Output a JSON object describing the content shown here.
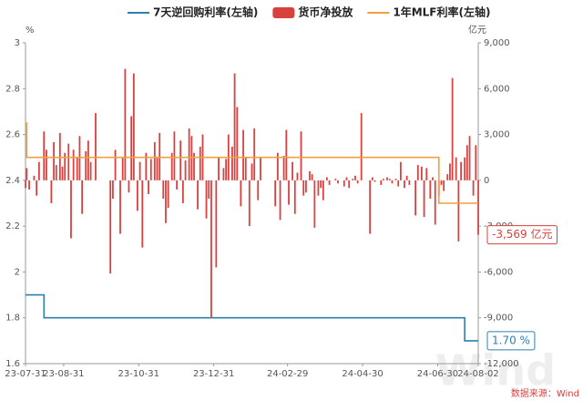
{
  "chart_data": {
    "type": "bar-line",
    "y_unit": "%",
    "y2_unit": "亿元",
    "source": "数据来源：Wind",
    "watermark": "Wind",
    "ylim": [
      1.6,
      3
    ],
    "yticks": [
      1.6,
      1.8,
      2,
      2.2,
      2.4,
      2.6,
      2.8,
      3
    ],
    "y2lim": [
      -12000,
      9000
    ],
    "y2ticks": [
      {
        "value": -12000,
        "label": "-12,000"
      },
      {
        "value": -9000,
        "label": "-9,000"
      },
      {
        "value": -6000,
        "label": "-6,000"
      },
      {
        "value": -3000,
        "label": "-3,000"
      },
      0,
      {
        "value": 3000,
        "label": "3,000"
      },
      {
        "value": 6000,
        "label": "6,000"
      },
      {
        "value": 9000,
        "label": "9,000"
      }
    ],
    "xlim": [
      "23-07-31",
      "24-08-02"
    ],
    "xticks": [
      "23-07-31",
      "23-08-31",
      "23-10-31",
      "23-12-31",
      "24-02-29",
      "24-04-30",
      "24-06-30",
      "24-08-02"
    ],
    "series": [
      {
        "name": "7天逆回购利率(左轴)",
        "type": "line",
        "color": "#2e7fb0",
        "x": [
          "23-07-31",
          "23-08-15",
          "23-08-15",
          "24-07-22",
          "24-07-22",
          "24-08-02"
        ],
        "values": [
          1.9,
          1.9,
          1.8,
          1.8,
          1.7,
          1.7
        ],
        "end_label": "1.70 %"
      },
      {
        "name": "货币净投放",
        "type": "bar",
        "axis": "y2",
        "color": "#d9413f",
        "x": [
          "23-07-31",
          "23-08-01",
          "23-08-03",
          "23-08-07",
          "23-08-09",
          "23-08-11",
          "23-08-15",
          "23-08-17",
          "23-08-21",
          "23-08-23",
          "23-08-25",
          "23-08-28",
          "23-08-30",
          "23-09-01",
          "23-09-04",
          "23-09-06",
          "23-09-08",
          "23-09-11",
          "23-09-13",
          "23-09-15",
          "23-09-18",
          "23-09-20",
          "23-09-22",
          "23-09-26",
          "23-10-08",
          "23-10-10",
          "23-10-12",
          "23-10-16",
          "23-10-18",
          "23-10-20",
          "23-10-23",
          "23-10-25",
          "23-10-27",
          "23-10-30",
          "23-11-01",
          "23-11-03",
          "23-11-06",
          "23-11-08",
          "23-11-10",
          "23-11-13",
          "23-11-15",
          "23-11-17",
          "23-11-20",
          "23-11-22",
          "23-11-24",
          "23-11-27",
          "23-11-29",
          "23-12-01",
          "23-12-04",
          "23-12-06",
          "23-12-08",
          "23-12-11",
          "23-12-13",
          "23-12-15",
          "23-12-18",
          "23-12-20",
          "23-12-22",
          "23-12-25",
          "23-12-27",
          "23-12-29",
          "24-01-02",
          "24-01-04",
          "24-01-08",
          "24-01-10",
          "24-01-12",
          "24-01-15",
          "24-01-17",
          "24-01-19",
          "24-01-22",
          "24-01-24",
          "24-01-26",
          "24-01-29",
          "24-01-31",
          "24-02-02",
          "24-02-05",
          "24-02-07",
          "24-02-19",
          "24-02-21",
          "24-02-23",
          "24-02-26",
          "24-02-28",
          "24-03-01",
          "24-03-04",
          "24-03-06",
          "24-03-08",
          "24-03-11",
          "24-03-13",
          "24-03-15",
          "24-03-18",
          "24-03-20",
          "24-03-22",
          "24-03-25",
          "24-03-27",
          "24-03-29",
          "24-04-01",
          "24-04-03",
          "24-04-08",
          "24-04-10",
          "24-04-15",
          "24-04-17",
          "24-04-19",
          "24-04-22",
          "24-04-24",
          "24-04-26",
          "24-04-29",
          "24-05-06",
          "24-05-08",
          "24-05-10",
          "24-05-15",
          "24-05-17",
          "24-05-20",
          "24-05-22",
          "24-05-24",
          "24-05-27",
          "24-05-29",
          "24-05-31",
          "24-06-03",
          "24-06-05",
          "24-06-07",
          "24-06-12",
          "24-06-14",
          "24-06-17",
          "24-06-19",
          "24-06-21",
          "24-06-24",
          "24-06-26",
          "24-06-28",
          "24-07-01",
          "24-07-03",
          "24-07-05",
          "24-07-08",
          "24-07-10",
          "24-07-12",
          "24-07-15",
          "24-07-17",
          "24-07-19",
          "24-07-22",
          "24-07-24",
          "24-07-26",
          "24-07-29",
          "24-07-31",
          "24-08-02"
        ],
        "values": [
          -500,
          800,
          -600,
          300,
          -1000,
          1200,
          3200,
          2000,
          -1500,
          2500,
          1000,
          3100,
          900,
          1800,
          2400,
          -3800,
          2000,
          1500,
          2900,
          -2200,
          1900,
          2600,
          1200,
          4400,
          -6100,
          -1200,
          2000,
          -3500,
          1500,
          7300,
          -800,
          4200,
          7000,
          -2000,
          1200,
          -4400,
          1800,
          -900,
          1400,
          2500,
          1500,
          3100,
          -1200,
          -2800,
          -1800,
          1800,
          3200,
          -600,
          2600,
          -1500,
          1300,
          3400,
          2900,
          1800,
          -1900,
          2200,
          3000,
          -2500,
          -1200,
          -9000,
          -5700,
          1500,
          800,
          1400,
          3000,
          2200,
          7000,
          4800,
          -1700,
          3300,
          1500,
          -3000,
          1100,
          3400,
          -1300,
          1500,
          -1700,
          1800,
          -2600,
          1600,
          3300,
          -1600,
          1200,
          -2200,
          500,
          3200,
          -1000,
          -800,
          600,
          400,
          -3100,
          -1000,
          -500,
          -1300,
          200,
          -300,
          100,
          -200,
          -400,
          200,
          -500,
          100,
          300,
          -200,
          4400,
          -3500,
          200,
          -100,
          -300,
          100,
          200,
          100,
          -200,
          100,
          -400,
          1200,
          -500,
          300,
          -300,
          -2300,
          1000,
          900,
          -2400,
          800,
          -1200,
          200,
          -2900,
          -1000,
          -300,
          -700,
          400,
          1100,
          6700,
          1500,
          -4000,
          1200,
          1500,
          2300,
          2900,
          -1000,
          2300,
          -3569
        ],
        "end_label": "-3,569 亿元"
      },
      {
        "name": "1年MLF利率(左轴)",
        "type": "line",
        "color": "#f0a03c",
        "x": [
          "23-07-31",
          "23-08-01",
          "23-08-01",
          "24-07-01",
          "24-07-01",
          "24-08-02"
        ],
        "values": [
          2.65,
          2.65,
          2.5,
          2.5,
          2.3,
          2.3
        ]
      }
    ]
  }
}
